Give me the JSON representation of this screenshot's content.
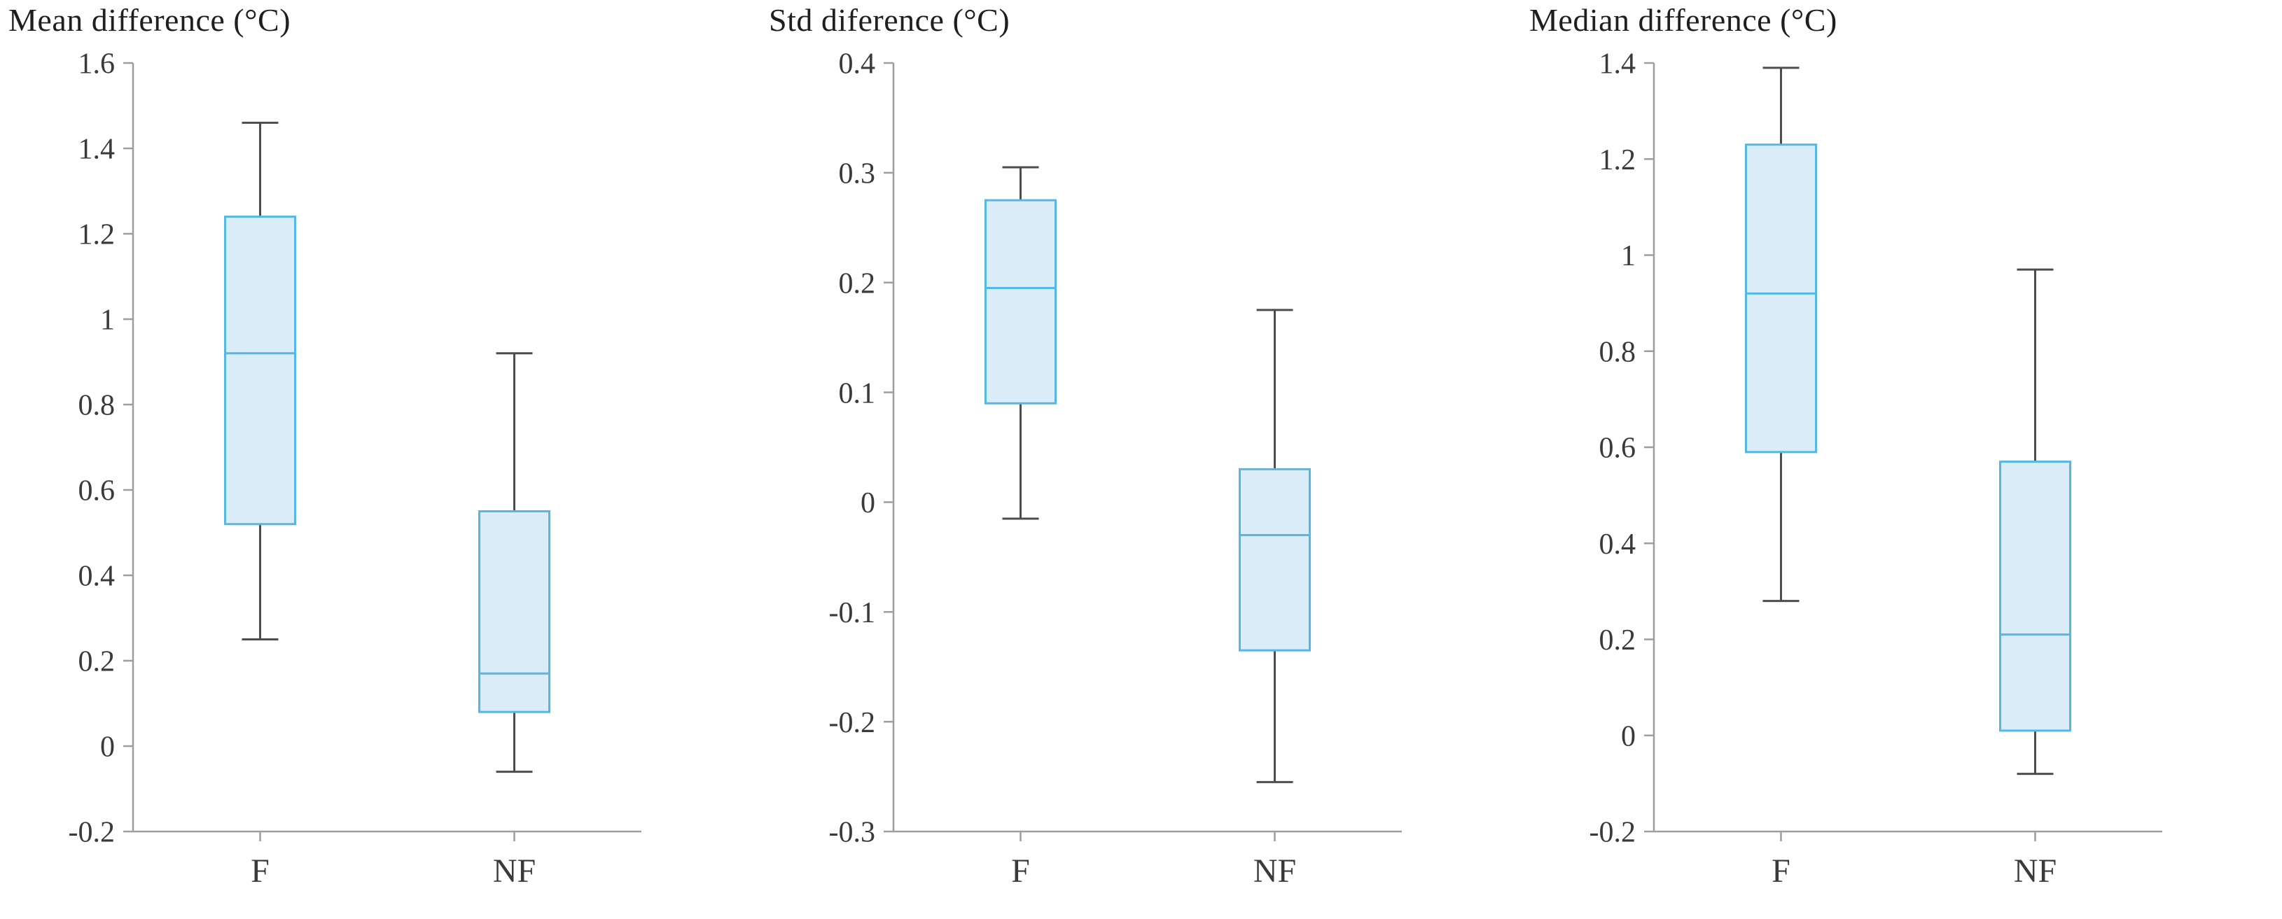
{
  "figure": {
    "background": "#ffffff"
  },
  "style": {
    "box_fill": "#d9ecf8",
    "box_stroke": "#55b7e4",
    "median_color": "#55b7e4",
    "whisker_color": "#4d4d4d",
    "axis_color": "#9e9e9e",
    "text_color": "#3a3a3a"
  },
  "chart_data": [
    {
      "type": "box",
      "title": "Mean difference (°C)",
      "xlabel": "",
      "ylabel": "",
      "categories": [
        "F",
        "NF"
      ],
      "ylim": [
        -0.2,
        1.6
      ],
      "yticks": [
        -0.2,
        0,
        0.2,
        0.4,
        0.6,
        0.8,
        1,
        1.2,
        1.4,
        1.6
      ],
      "grid": false,
      "boxes": [
        {
          "category": "F",
          "whisker_low": 0.25,
          "q1": 0.52,
          "median": 0.92,
          "q3": 1.24,
          "whisker_high": 1.46
        },
        {
          "category": "NF",
          "whisker_low": -0.06,
          "q1": 0.08,
          "median": 0.17,
          "q3": 0.55,
          "whisker_high": 0.92
        }
      ]
    },
    {
      "type": "box",
      "title": "Std diference (°C)",
      "xlabel": "",
      "ylabel": "",
      "categories": [
        "F",
        "NF"
      ],
      "ylim": [
        -0.3,
        0.4
      ],
      "yticks": [
        -0.3,
        -0.2,
        -0.1,
        0,
        0.1,
        0.2,
        0.3,
        0.4
      ],
      "grid": false,
      "boxes": [
        {
          "category": "F",
          "whisker_low": -0.015,
          "q1": 0.09,
          "median": 0.195,
          "q3": 0.275,
          "whisker_high": 0.305
        },
        {
          "category": "NF",
          "whisker_low": -0.255,
          "q1": -0.135,
          "median": -0.03,
          "q3": 0.03,
          "whisker_high": 0.175
        }
      ]
    },
    {
      "type": "box",
      "title": "Median difference (°C)",
      "xlabel": "",
      "ylabel": "",
      "categories": [
        "F",
        "NF"
      ],
      "ylim": [
        -0.2,
        1.4
      ],
      "yticks": [
        -0.2,
        0,
        0.2,
        0.4,
        0.6,
        0.8,
        1,
        1.2,
        1.4
      ],
      "grid": false,
      "boxes": [
        {
          "category": "F",
          "whisker_low": 0.28,
          "q1": 0.59,
          "median": 0.92,
          "q3": 1.23,
          "whisker_high": 1.39
        },
        {
          "category": "NF",
          "whisker_low": -0.08,
          "q1": 0.01,
          "median": 0.21,
          "q3": 0.57,
          "whisker_high": 0.97
        }
      ]
    }
  ]
}
